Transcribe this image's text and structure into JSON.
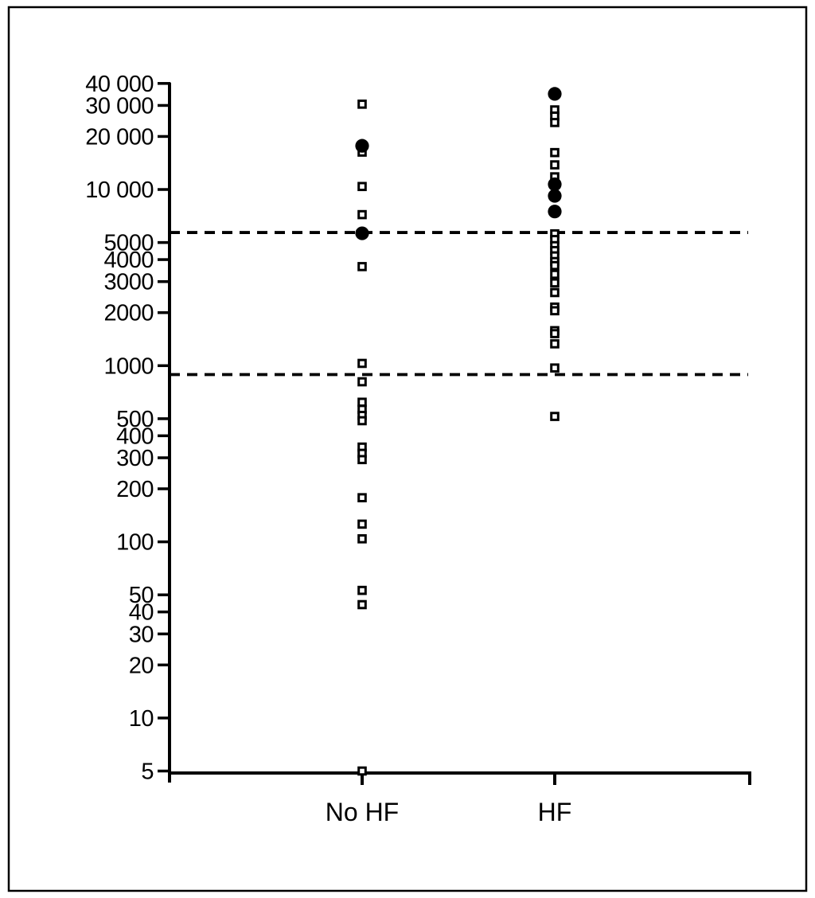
{
  "figure": {
    "background_color": "#ffffff",
    "ink_color": "#000000",
    "frame": "thin black rectangular border around entire figure"
  },
  "chart_data": {
    "type": "scatter",
    "title": "",
    "xlabel": "",
    "ylabel": "",
    "y_scale": "log",
    "ylim": [
      5,
      40000
    ],
    "grid": false,
    "legend": "none",
    "categories": [
      "No HF",
      "HF"
    ],
    "y_tick_values": [
      40000,
      30000,
      20000,
      10000,
      5000,
      4000,
      3000,
      2000,
      1000,
      500,
      400,
      300,
      200,
      100,
      50,
      40,
      30,
      20,
      10,
      5
    ],
    "y_tick_labels": [
      "40 000",
      "30 000",
      "20 000",
      "10 000",
      "5000",
      "4000",
      "3000",
      "2000",
      "1000",
      "500",
      "400",
      "300",
      "200",
      "100",
      "50",
      "40",
      "30",
      "20",
      "10",
      "5"
    ],
    "series": [
      {
        "name": "No HF - open squares",
        "category": "No HF",
        "marker": "open-square",
        "values": [
          30500,
          16300,
          10400,
          7200,
          3650,
          1030,
          810,
          620,
          565,
          522,
          487,
          345,
          318,
          293,
          178,
          126,
          104,
          53,
          44,
          5
        ]
      },
      {
        "name": "No HF - filled circles",
        "category": "No HF",
        "marker": "filled-circle",
        "values": [
          17700,
          5640
        ]
      },
      {
        "name": "HF - open squares",
        "category": "HF",
        "marker": "open-square",
        "values": [
          28300,
          26100,
          24000,
          16200,
          13800,
          11800,
          5600,
          5200,
          4800,
          4500,
          4200,
          3900,
          3700,
          3300,
          2950,
          2600,
          2150,
          2050,
          1580,
          1520,
          1330,
          970,
          515
        ]
      },
      {
        "name": "HF - filled circles",
        "category": "HF",
        "marker": "filled-circle",
        "values": [
          34900,
          10700,
          9200,
          7500
        ]
      }
    ],
    "reference_lines": [
      {
        "style": "dashed",
        "value": 5700
      },
      {
        "style": "dashed",
        "value": 890
      }
    ]
  }
}
